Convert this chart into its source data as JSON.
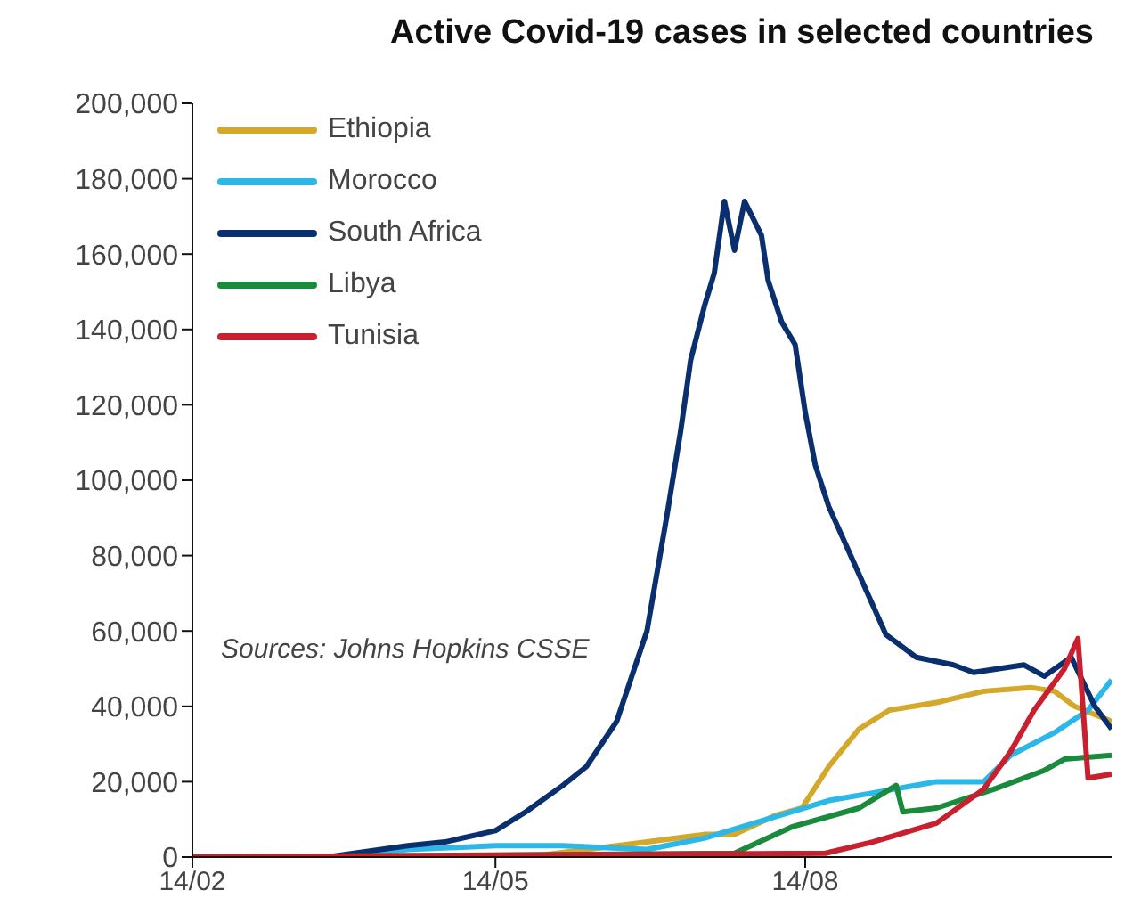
{
  "chart_data": {
    "type": "line",
    "title": "Active Covid-19 cases in selected countries",
    "annotations": [
      "Sources: Johns Hopkins CSSE"
    ],
    "xlim": [
      "--02-14",
      "--11-13"
    ],
    "xticks": [
      {
        "value": "--02-14",
        "label": "14/02"
      },
      {
        "value": "--05-14",
        "label": "14/05"
      },
      {
        "value": "--08-14",
        "label": "14/08"
      }
    ],
    "ylim": [
      0,
      200000
    ],
    "yticks": [
      {
        "value": 0,
        "label": "0"
      },
      {
        "value": 20000,
        "label": "20,000"
      },
      {
        "value": 40000,
        "label": "40,000"
      },
      {
        "value": 60000,
        "label": "60,000"
      },
      {
        "value": 80000,
        "label": "80,000"
      },
      {
        "value": 100000,
        "label": "100,000"
      },
      {
        "value": 120000,
        "label": "120,000"
      },
      {
        "value": 140000,
        "label": "140,000"
      },
      {
        "value": 160000,
        "label": "160,000"
      },
      {
        "value": 180000,
        "label": "180,000"
      },
      {
        "value": 200000,
        "label": "200,000"
      }
    ],
    "grid": false,
    "legend": "top left",
    "marker": "none",
    "line_style": "solid",
    "series": [
      {
        "name": "Ethiopia",
        "color": "#d4a82a",
        "x": [
          "--02-14",
          "--05-23",
          "--06-28",
          "--07-15",
          "--07-24",
          "--08-05",
          "--08-13",
          "--08-21",
          "--08-30",
          "--09-08",
          "--09-22",
          "--10-06",
          "--10-20",
          "--10-27",
          "--11-02",
          "--11-13"
        ],
        "values": [
          0,
          0,
          4000,
          6000,
          6000,
          11000,
          13000,
          24000,
          34000,
          39000,
          41000,
          44000,
          45000,
          44000,
          40000,
          36000
        ]
      },
      {
        "name": "Morocco",
        "color": "#2bb8e8",
        "x": [
          "--02-14",
          "--03-25",
          "--04-18",
          "--05-14",
          "--06-03",
          "--06-28",
          "--07-15",
          "--08-10",
          "--08-21",
          "--09-03",
          "--09-22",
          "--10-06",
          "--10-14",
          "--10-27",
          "--11-06",
          "--11-13"
        ],
        "values": [
          0,
          0,
          2000,
          3000,
          3000,
          2000,
          5000,
          12000,
          15000,
          17000,
          20000,
          20000,
          27000,
          33000,
          39000,
          47000
        ]
      },
      {
        "name": "South Africa",
        "color": "#0a2f6e",
        "x": [
          "--02-14",
          "--03-25",
          "--04-18",
          "--04-29",
          "--05-14",
          "--05-23",
          "--06-03",
          "--06-10",
          "--06-19",
          "--06-28",
          "--07-04",
          "--07-08",
          "--07-11",
          "--07-15",
          "--07-18",
          "--07-21",
          "--07-24",
          "--07-27",
          "--08-01",
          "--08-03",
          "--08-07",
          "--08-11",
          "--08-14",
          "--08-17",
          "--08-21",
          "--08-28",
          "--09-02",
          "--09-07",
          "--09-16",
          "--09-27",
          "--10-03",
          "--10-18",
          "--10-24",
          "--11-01",
          "--11-08",
          "--11-13"
        ],
        "values": [
          0,
          0,
          3000,
          4000,
          7000,
          12000,
          19000,
          24000,
          36000,
          60000,
          91000,
          113000,
          132000,
          146000,
          155000,
          174000,
          161000,
          174000,
          165000,
          153000,
          142000,
          136000,
          118000,
          104000,
          93000,
          79000,
          69000,
          59000,
          53000,
          51000,
          49000,
          51000,
          48000,
          53000,
          40000,
          34000
        ]
      },
      {
        "name": "Libya",
        "color": "#1a8a3c",
        "x": [
          "--02-14",
          "--07-24",
          "--08-10",
          "--08-30",
          "--09-10",
          "--09-12",
          "--09-22",
          "--10-09",
          "--10-24",
          "--10-30",
          "--11-13"
        ],
        "values": [
          0,
          1000,
          8000,
          13000,
          19000,
          12000,
          13000,
          18000,
          23000,
          26000,
          27000
        ]
      },
      {
        "name": "Tunisia",
        "color": "#c8202e",
        "x": [
          "--02-14",
          "--08-20",
          "--09-03",
          "--09-22",
          "--10-06",
          "--10-14",
          "--10-21",
          "--10-30",
          "--11-03",
          "--11-06",
          "--11-13"
        ],
        "values": [
          0,
          1000,
          4000,
          9000,
          18000,
          28000,
          39000,
          50000,
          58000,
          21000,
          22000
        ]
      }
    ]
  }
}
